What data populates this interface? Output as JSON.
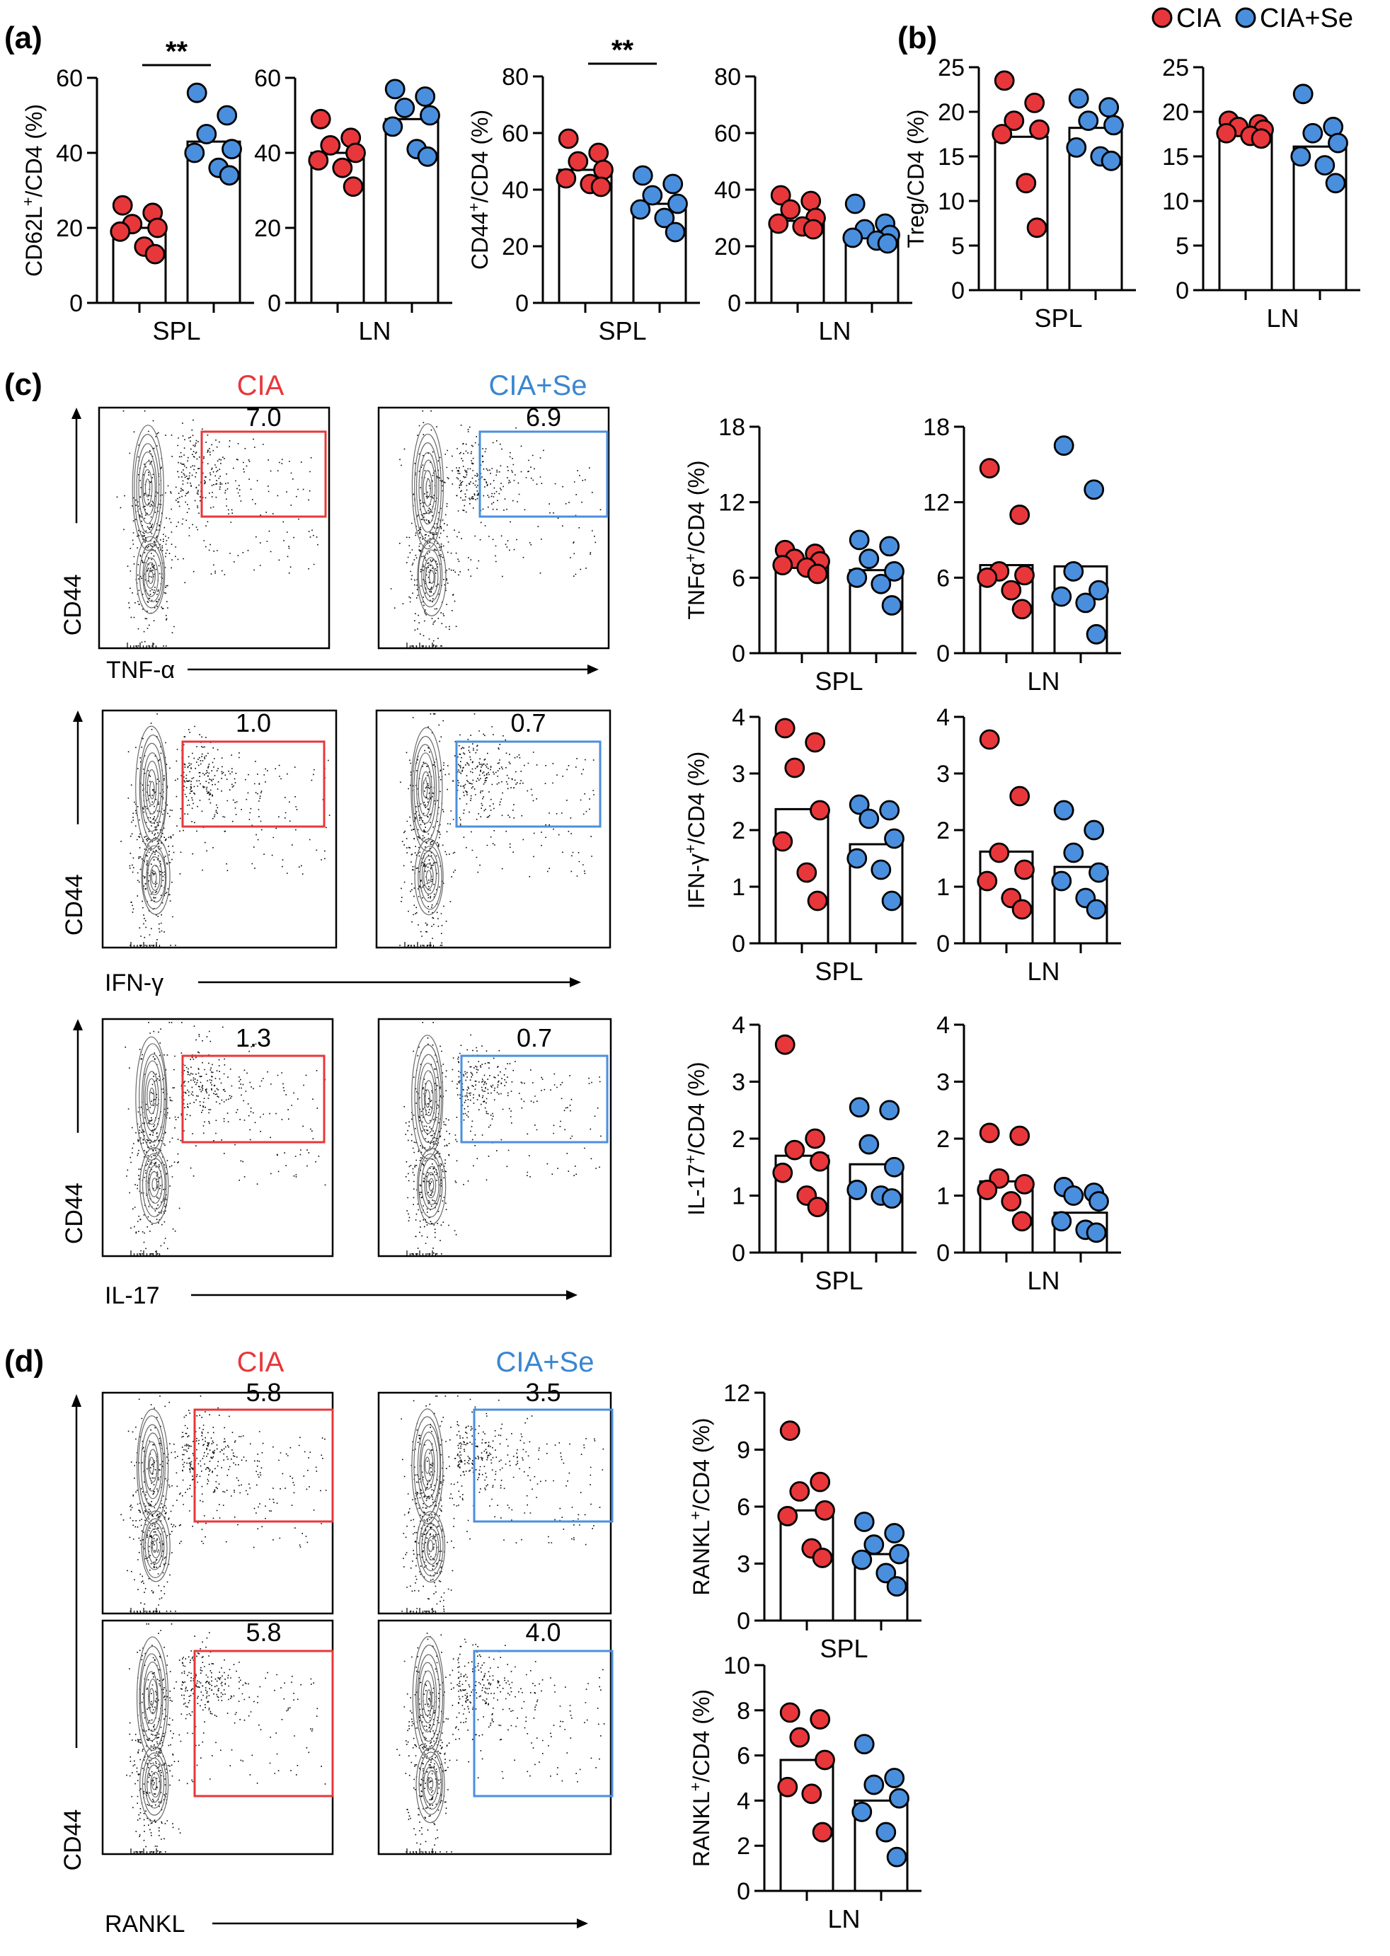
{
  "legend": {
    "entries": [
      {
        "name": "CIA",
        "color": "#e8373a"
      },
      {
        "name": "CIA+Se",
        "color": "#4a8fde"
      }
    ]
  },
  "colors": {
    "cia": "#e8373a",
    "se": "#4a8fde",
    "gate_cia": "#e8373a",
    "gate_se": "#4a8fde"
  },
  "panels": {
    "a": "(a)",
    "b": "(b)",
    "c": "(c)",
    "d": "(d)"
  },
  "flow": {
    "c_cond_left": "CIA",
    "c_cond_right": "CIA+Se",
    "d_cond_left": "CIA",
    "d_cond_right": "CIA+Se",
    "y_marker": "CD44",
    "rows": [
      {
        "id": "tnf",
        "x_marker": "TNF-α",
        "gate_left": "7.0",
        "gate_right": "6.9"
      },
      {
        "id": "ifn",
        "x_marker": "IFN-γ",
        "gate_left": "1.0",
        "gate_right": "0.7"
      },
      {
        "id": "il17",
        "x_marker": "IL-17",
        "gate_left": "1.3",
        "gate_right": "0.7"
      },
      {
        "id": "rankl_spl",
        "x_marker": "",
        "gate_left": "5.8",
        "gate_right": "3.5"
      },
      {
        "id": "rankl_ln",
        "x_marker": "RANKL",
        "gate_left": "5.8",
        "gate_right": "4.0"
      }
    ]
  },
  "chart_data": [
    {
      "id": "a1",
      "type": "bar",
      "ylabel_main": "CD62L",
      "ylabel_sup": "+",
      "ylabel_rest": "/CD4 (%)",
      "xlabel": "SPL",
      "ylim": [
        0,
        60
      ],
      "yticks": [
        0,
        20,
        40,
        60
      ],
      "significance": "**",
      "series": [
        {
          "name": "CIA",
          "mean": 20,
          "points": [
            26,
            24,
            21,
            20,
            19,
            15,
            13
          ]
        },
        {
          "name": "CIA+Se",
          "mean": 43,
          "points": [
            56,
            50,
            45,
            41,
            40,
            36,
            34
          ]
        }
      ]
    },
    {
      "id": "a2",
      "type": "bar",
      "ylabel_main": "",
      "ylabel_sup": "",
      "ylabel_rest": "",
      "xlabel": "LN",
      "ylim": [
        0,
        60
      ],
      "yticks": [
        0,
        20,
        40,
        60
      ],
      "significance": "",
      "series": [
        {
          "name": "CIA",
          "mean": 40,
          "points": [
            49,
            44,
            42,
            40,
            38,
            36,
            31
          ]
        },
        {
          "name": "CIA+Se",
          "mean": 49,
          "points": [
            57,
            55,
            52,
            50,
            47,
            41,
            39
          ]
        }
      ]
    },
    {
      "id": "a3",
      "type": "bar",
      "ylabel_main": "CD44",
      "ylabel_sup": "+",
      "ylabel_rest": "/CD4 (%)",
      "xlabel": "SPL",
      "ylim": [
        0,
        80
      ],
      "yticks": [
        0,
        20,
        40,
        60,
        80
      ],
      "significance": "**",
      "series": [
        {
          "name": "CIA",
          "mean": 47,
          "points": [
            58,
            53,
            50,
            47,
            44,
            42,
            41
          ]
        },
        {
          "name": "CIA+Se",
          "mean": 35,
          "points": [
            45,
            42,
            38,
            35,
            33,
            30,
            25
          ]
        }
      ]
    },
    {
      "id": "a4",
      "type": "bar",
      "ylabel_main": "",
      "ylabel_sup": "",
      "ylabel_rest": "",
      "xlabel": "LN",
      "ylim": [
        0,
        80
      ],
      "yticks": [
        0,
        20,
        40,
        60,
        80
      ],
      "significance": "",
      "series": [
        {
          "name": "CIA",
          "mean": 29,
          "points": [
            38,
            36,
            33,
            30,
            28,
            27,
            26
          ]
        },
        {
          "name": "CIA+Se",
          "mean": 24,
          "points": [
            35,
            28,
            26,
            24,
            23,
            22,
            21
          ]
        }
      ]
    },
    {
      "id": "b1",
      "type": "bar",
      "ylabel_main": "Treg/CD4 (%)",
      "ylabel_sup": "",
      "ylabel_rest": "",
      "xlabel": "SPL",
      "ylim": [
        0,
        25
      ],
      "yticks": [
        0,
        5,
        10,
        15,
        20,
        25
      ],
      "significance": "",
      "series": [
        {
          "name": "CIA",
          "mean": 17.2,
          "points": [
            23.5,
            21,
            19,
            18,
            17.5,
            12,
            7
          ]
        },
        {
          "name": "CIA+Se",
          "mean": 18.2,
          "points": [
            21.5,
            20.5,
            19,
            18.5,
            16,
            15,
            14.5
          ]
        }
      ]
    },
    {
      "id": "b2",
      "type": "bar",
      "ylabel_main": "",
      "ylabel_sup": "",
      "ylabel_rest": "",
      "xlabel": "LN",
      "ylim": [
        0,
        25
      ],
      "yticks": [
        0,
        5,
        10,
        15,
        20,
        25
      ],
      "significance": "",
      "series": [
        {
          "name": "CIA",
          "mean": 17.6,
          "points": [
            19,
            18.6,
            18.3,
            18,
            17.6,
            17.3,
            17
          ]
        },
        {
          "name": "CIA+Se",
          "mean": 16.1,
          "points": [
            22,
            18.3,
            17.6,
            16.5,
            15,
            14,
            12
          ]
        }
      ]
    },
    {
      "id": "c1",
      "type": "bar",
      "ylabel_main": "TNFα",
      "ylabel_sup": "+",
      "ylabel_rest": "/CD4 (%)",
      "xlabel": "SPL",
      "ylim": [
        0,
        18
      ],
      "yticks": [
        0,
        6,
        12,
        18
      ],
      "significance": "",
      "series": [
        {
          "name": "CIA",
          "mean": 7.2,
          "points": [
            8.2,
            7.9,
            7.5,
            7.3,
            7,
            6.8,
            6.3
          ]
        },
        {
          "name": "CIA+Se",
          "mean": 6.6,
          "points": [
            9,
            8.5,
            7.5,
            6.5,
            6,
            5.5,
            3.8
          ]
        }
      ]
    },
    {
      "id": "c2",
      "type": "bar",
      "ylabel_main": "",
      "ylabel_sup": "",
      "ylabel_rest": "",
      "xlabel": "LN",
      "ylim": [
        0,
        18
      ],
      "yticks": [
        0,
        6,
        12,
        18
      ],
      "significance": "",
      "series": [
        {
          "name": "CIA",
          "mean": 7,
          "points": [
            14.7,
            11,
            6.5,
            6.2,
            6,
            5,
            3.5
          ]
        },
        {
          "name": "CIA+Se",
          "mean": 6.9,
          "points": [
            16.5,
            13,
            6.5,
            5,
            4.5,
            4,
            1.5
          ]
        }
      ]
    },
    {
      "id": "c3",
      "type": "bar",
      "ylabel_main": "IFN-γ",
      "ylabel_sup": "+",
      "ylabel_rest": "/CD4 (%)",
      "xlabel": "SPL",
      "ylim": [
        0,
        4
      ],
      "yticks": [
        0,
        1,
        2,
        3,
        4
      ],
      "significance": "",
      "series": [
        {
          "name": "CIA",
          "mean": 2.37,
          "points": [
            3.8,
            3.55,
            3.1,
            2.35,
            1.8,
            1.25,
            0.75
          ]
        },
        {
          "name": "CIA+Se",
          "mean": 1.75,
          "points": [
            2.45,
            2.35,
            2.2,
            1.85,
            1.5,
            1.3,
            0.75
          ]
        }
      ]
    },
    {
      "id": "c4",
      "type": "bar",
      "ylabel_main": "",
      "ylabel_sup": "",
      "ylabel_rest": "",
      "xlabel": "LN",
      "ylim": [
        0,
        4
      ],
      "yticks": [
        0,
        1,
        2,
        3,
        4
      ],
      "significance": "",
      "series": [
        {
          "name": "CIA",
          "mean": 1.62,
          "points": [
            3.6,
            2.6,
            1.6,
            1.3,
            1.1,
            0.8,
            0.6
          ]
        },
        {
          "name": "CIA+Se",
          "mean": 1.35,
          "points": [
            2.35,
            2,
            1.6,
            1.25,
            1.1,
            0.8,
            0.6
          ]
        }
      ]
    },
    {
      "id": "c5",
      "type": "bar",
      "ylabel_main": "IL-17",
      "ylabel_sup": "+",
      "ylabel_rest": "/CD4 (%)",
      "xlabel": "SPL",
      "ylim": [
        0,
        4
      ],
      "yticks": [
        0,
        1,
        2,
        3,
        4
      ],
      "significance": "",
      "series": [
        {
          "name": "CIA",
          "mean": 1.7,
          "points": [
            3.65,
            2,
            1.8,
            1.6,
            1.4,
            1,
            0.8
          ]
        },
        {
          "name": "CIA+Se",
          "mean": 1.55,
          "points": [
            2.55,
            2.5,
            1.9,
            1.5,
            1.1,
            1,
            0.95
          ]
        }
      ]
    },
    {
      "id": "c6",
      "type": "bar",
      "ylabel_main": "",
      "ylabel_sup": "",
      "ylabel_rest": "",
      "xlabel": "LN",
      "ylim": [
        0,
        4
      ],
      "yticks": [
        0,
        1,
        2,
        3,
        4
      ],
      "significance": "",
      "series": [
        {
          "name": "CIA",
          "mean": 1.25,
          "points": [
            2.1,
            2.05,
            1.3,
            1.2,
            1.1,
            0.9,
            0.55
          ]
        },
        {
          "name": "CIA+Se",
          "mean": 0.7,
          "points": [
            1.15,
            1.05,
            1,
            0.9,
            0.55,
            0.4,
            0.35
          ]
        }
      ]
    },
    {
      "id": "d1",
      "type": "bar",
      "ylabel_main": "RANKL",
      "ylabel_sup": "+",
      "ylabel_rest": "/CD4 (%)",
      "xlabel": "SPL",
      "ylim": [
        0,
        12
      ],
      "yticks": [
        0,
        3,
        6,
        9,
        12
      ],
      "significance": "",
      "series": [
        {
          "name": "CIA",
          "mean": 5.8,
          "points": [
            10,
            7.3,
            6.8,
            5.8,
            5.5,
            3.8,
            3.3
          ]
        },
        {
          "name": "CIA+Se",
          "mean": 3.5,
          "points": [
            5.2,
            4.6,
            4,
            3.5,
            3.2,
            2.5,
            1.8
          ]
        }
      ]
    },
    {
      "id": "d2",
      "type": "bar",
      "ylabel_main": "RANKL",
      "ylabel_sup": "+",
      "ylabel_rest": "/CD4 (%)",
      "xlabel": "LN",
      "ylim": [
        0,
        10
      ],
      "yticks": [
        0,
        2,
        4,
        6,
        8,
        10
      ],
      "significance": "",
      "series": [
        {
          "name": "CIA",
          "mean": 5.8,
          "points": [
            7.9,
            7.6,
            6.8,
            5.8,
            4.6,
            4.3,
            2.6
          ]
        },
        {
          "name": "CIA+Se",
          "mean": 4,
          "points": [
            6.5,
            5,
            4.7,
            4.1,
            3.5,
            2.6,
            1.5
          ]
        }
      ]
    }
  ]
}
